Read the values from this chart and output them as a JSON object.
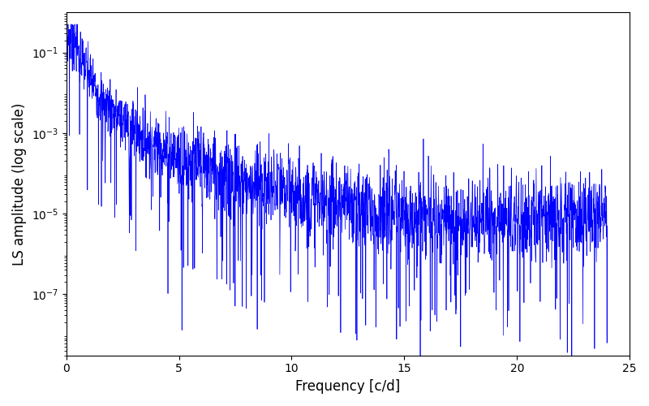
{
  "xlabel": "Frequency [c/d]",
  "ylabel": "LS amplitude (log scale)",
  "xlim": [
    0,
    25
  ],
  "ylim_log": [
    3e-09,
    1.0
  ],
  "yticks": [
    1e-07,
    1e-05,
    0.001,
    0.1
  ],
  "xticks": [
    0,
    5,
    10,
    15,
    20,
    25
  ],
  "line_color": "#0000ff",
  "line_width": 0.5,
  "background_color": "#ffffff",
  "figsize": [
    8.0,
    5.0
  ],
  "dpi": 100,
  "freq_max": 24.0,
  "n_points": 2400,
  "seed": 7
}
